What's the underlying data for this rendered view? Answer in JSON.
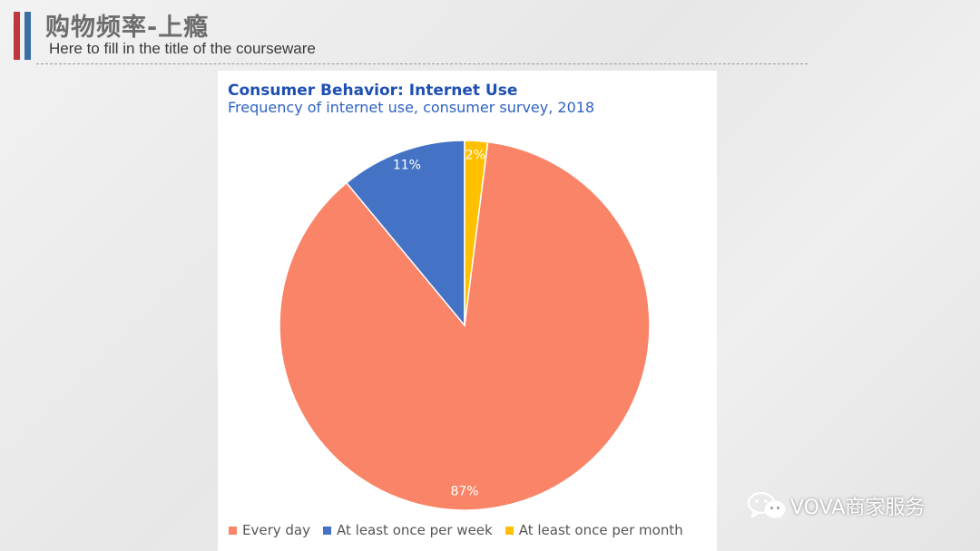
{
  "header": {
    "title": "购物频率-上瘾",
    "subtitle": "Here to fill in the title of the courseware",
    "accent_colors": [
      "#c1363d",
      "#3a6ea5"
    ]
  },
  "chart_data": {
    "type": "pie",
    "title": "Consumer Behavior: Internet Use",
    "subtitle": "Frequency of internet use, consumer survey, 2018",
    "categories": [
      "Every day",
      "At least once per week",
      "At least once per month"
    ],
    "values": [
      87,
      11,
      2
    ],
    "labels": [
      "87%",
      "11%",
      "2%"
    ],
    "colors": [
      "#f98467",
      "#4472c4",
      "#ffc000"
    ],
    "start": "top",
    "direction": "clockwise",
    "legend_position": "bottom"
  },
  "watermark": {
    "text": "VOVA商家服务",
    "icon": "wechat-icon"
  }
}
